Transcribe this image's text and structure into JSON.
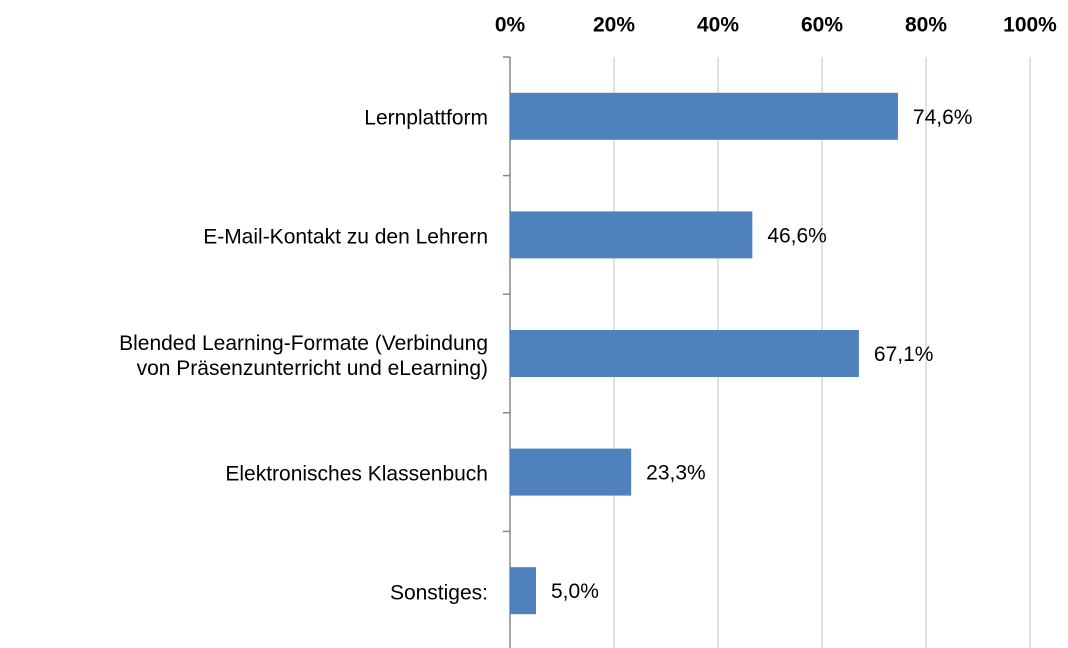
{
  "chart_data": {
    "type": "hbar",
    "categories": [
      "Lernplattform",
      "E-Mail-Kontakt zu den Lehrern",
      "Blended Learning-Formate (Verbindung\nvon Präsenzunterricht und eLearning)",
      "Elektronisches Klassenbuch",
      "Sonstiges:"
    ],
    "values": [
      74.6,
      46.6,
      67.1,
      23.3,
      5.0
    ],
    "value_labels": [
      "74,6%",
      "46,6%",
      "67,1%",
      "23,3%",
      "5,0%"
    ],
    "color": "#4f81bd",
    "xlim": [
      0,
      100
    ],
    "xticks": [
      {
        "value": 0,
        "label": "0%"
      },
      {
        "value": 20,
        "label": "20%"
      },
      {
        "value": 40,
        "label": "40%"
      },
      {
        "value": 60,
        "label": "60%"
      },
      {
        "value": 80,
        "label": "80%"
      },
      {
        "value": 100,
        "label": "100%"
      }
    ],
    "grid": true
  }
}
